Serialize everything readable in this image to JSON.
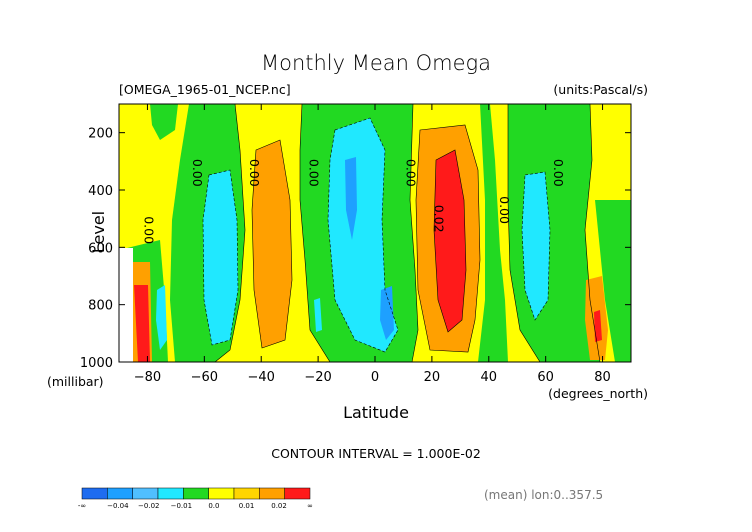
{
  "chart_data": {
    "type": "contour",
    "title": "Monthly Mean Omega",
    "subtitle_left": "[OMEGA_1965-01_NCEP.nc]",
    "subtitle_right": "(units:Pascal/s)",
    "xlabel": "Latitude",
    "x_units": "(degrees_north)",
    "ylabel": "Level",
    "y_units": "(millibar)",
    "xlim": [
      -90,
      90
    ],
    "ylim": [
      1000,
      100
    ],
    "x_ticks": [
      -80,
      -60,
      -40,
      -20,
      0,
      20,
      40,
      60,
      80
    ],
    "x_tick_labels": [
      "−80",
      "−60",
      "−40",
      "−20",
      "0",
      "20",
      "40",
      "60",
      "80"
    ],
    "y_ticks": [
      1000,
      800,
      600,
      400,
      200
    ],
    "y_tick_labels": [
      "1000",
      "800",
      "600",
      "400",
      "200"
    ],
    "contour_interval_text": "CONTOUR INTERVAL = 1.000E-02",
    "contour_labels": [
      {
        "text": "0.00",
        "lat": -81,
        "level": 540
      },
      {
        "text": "0.00",
        "lat": -64,
        "level": 340
      },
      {
        "text": "0.00",
        "lat": -44,
        "level": 340
      },
      {
        "text": "0.00",
        "lat": -23,
        "level": 340
      },
      {
        "text": "0.00",
        "lat": 11,
        "level": 340
      },
      {
        "text": "0.02",
        "lat": 21,
        "level": 500
      },
      {
        "text": "0.00",
        "lat": 44,
        "level": 470
      },
      {
        "text": "0.00",
        "lat": 63,
        "level": 340
      }
    ],
    "bands": [
      {
        "lat_from": -90,
        "lat_to": -83,
        "value": "< -0.04 .. 0.02"
      },
      {
        "lat_from": -85,
        "lat_to": -80,
        "value": "> 0.02"
      },
      {
        "lat_from": -67,
        "lat_to": -53,
        "value": "-0.02 .. -0.01"
      },
      {
        "lat_from": -46,
        "lat_to": -34,
        "value": "0.01 .. 0.02"
      },
      {
        "lat_from": -12,
        "lat_to": -3,
        "value": "-0.02 .. -0.01"
      },
      {
        "lat_from": 15,
        "lat_to": 33,
        "value": "0.01 .. 0.02"
      },
      {
        "lat_from": 21,
        "lat_to": 30,
        "value": "> 0.02"
      },
      {
        "lat_from": 55,
        "lat_to": 64,
        "value": "-0.02 .. -0.01"
      },
      {
        "lat_from": 76,
        "lat_to": 84,
        "value": "0.01 .. 0.02"
      }
    ],
    "colorbar": {
      "colors": [
        "#1e6cf0",
        "#1ea0ff",
        "#50bfff",
        "#20e8ff",
        "#22d922",
        "#ffff00",
        "#ffd500",
        "#ffa000",
        "#ff1a1a"
      ],
      "labels": [
        "-∞",
        "−0.04",
        "−0.02",
        "−0.01",
        "0.0",
        "0.01",
        "0.02",
        "∞"
      ]
    },
    "footer_right": "(mean) lon:0..357.5",
    "grid": false
  },
  "palette": {
    "negative_strong": "#0080ff",
    "negative_mid": "#00c0ff",
    "negative_weak": "#00ffff",
    "near_zero_neg": "#00dd00",
    "near_zero_pos": "#ffff00",
    "positive_mid": "#ffa500",
    "positive_strong": "#ff0000"
  }
}
